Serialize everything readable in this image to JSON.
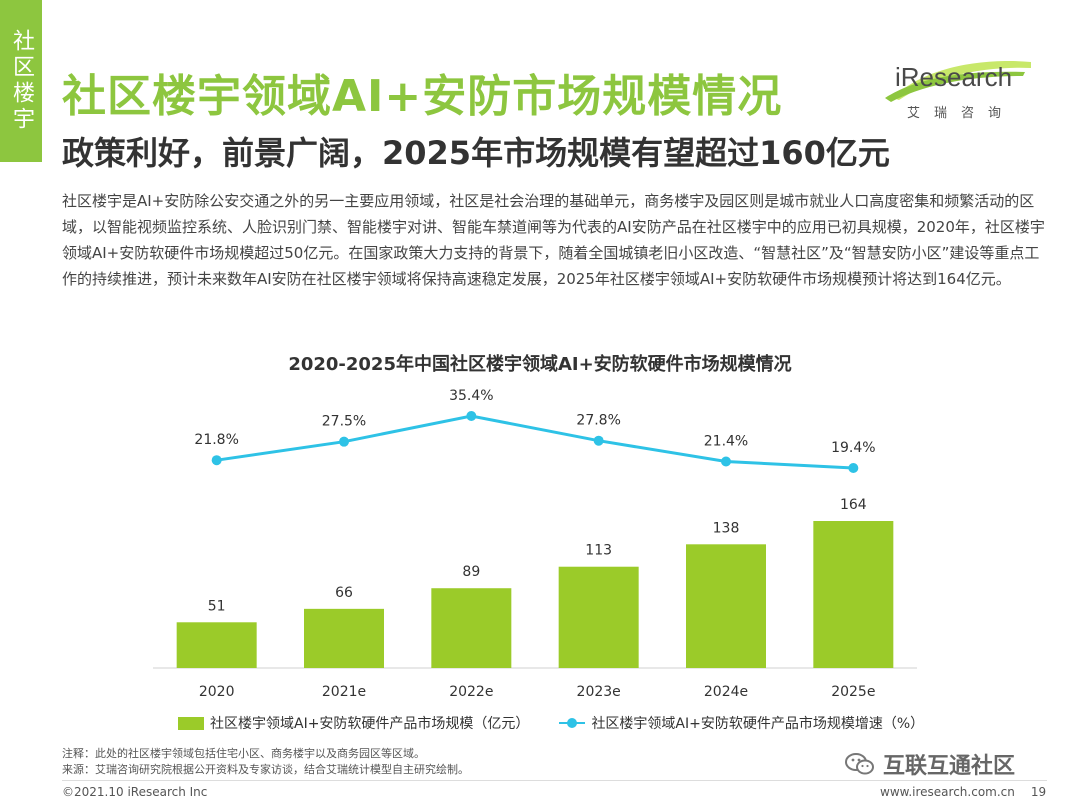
{
  "side_tab": {
    "label": "社区楼宇"
  },
  "header": {
    "title": "社区楼宇领域AI+安防市场规模情况",
    "subtitle": "政策利好，前景广阔，2025年市场规模有望超过160亿元"
  },
  "logo": {
    "brand": "iResearch",
    "sub": "艾瑞咨询"
  },
  "paragraph": "社区楼宇是AI+安防除公安交通之外的另一主要应用领域，社区是社会治理的基础单元，商务楼宇及园区则是城市就业人口高度密集和频繁活动的区域，以智能视频监控系统、人脸识别门禁、智能楼宇对讲、智能车禁道闸等为代表的AI安防产品在社区楼宇中的应用已初具规模，2020年，社区楼宇领域AI+安防软硬件市场规模超过50亿元。在国家政策大力支持的背景下，随着全国城镇老旧小区改造、“智慧社区”及“智慧安防小区”建设等重点工作的持续推进，预计未来数年AI安防在社区楼宇领域将保持高速稳定发展，2025年社区楼宇领域AI+安防软硬件市场规模预计将达到164亿元。",
  "chart_data": {
    "type": "bar",
    "title": "2020-2025年中国社区楼宇领域AI+安防软硬件市场规模情况",
    "categories": [
      "2020",
      "2021e",
      "2022e",
      "2023e",
      "2024e",
      "2025e"
    ],
    "series": [
      {
        "name": "社区楼宇领域AI+安防软硬件产品市场规模（亿元）",
        "type": "bar",
        "values": [
          51,
          66,
          89,
          113,
          138,
          164
        ],
        "labels": [
          "51",
          "66",
          "89",
          "113",
          "138",
          "164"
        ]
      },
      {
        "name": "社区楼宇领域AI+安防软硬件产品市场规模增速（%）",
        "type": "line",
        "values": [
          21.8,
          27.5,
          35.4,
          27.8,
          21.4,
          19.4
        ],
        "labels": [
          "21.8%",
          "27.5%",
          "35.4%",
          "27.8%",
          "21.4%",
          "19.4%"
        ]
      }
    ],
    "bar_color": "#9bcb29",
    "line_color": "#2ec2e6",
    "bar_ylim": [
      0,
      180
    ],
    "line_ylim": [
      -40,
      40
    ],
    "legend_position": "bottom"
  },
  "notes": {
    "note": "注释：此处的社区楼宇领域包括住宅小区、商务楼宇以及商务园区等区域。",
    "source": "来源：艾瑞咨询研究院根据公开资料及专家访谈，结合艾瑞统计模型自主研究绘制。"
  },
  "watermark": {
    "text": "互联互通社区",
    "icon": "wechat-icon"
  },
  "footer": {
    "copyright": "©2021.10 iResearch Inc",
    "url": "www.iresearch.com.cn",
    "page": "19"
  },
  "colors": {
    "accent": "#8dc63f"
  }
}
